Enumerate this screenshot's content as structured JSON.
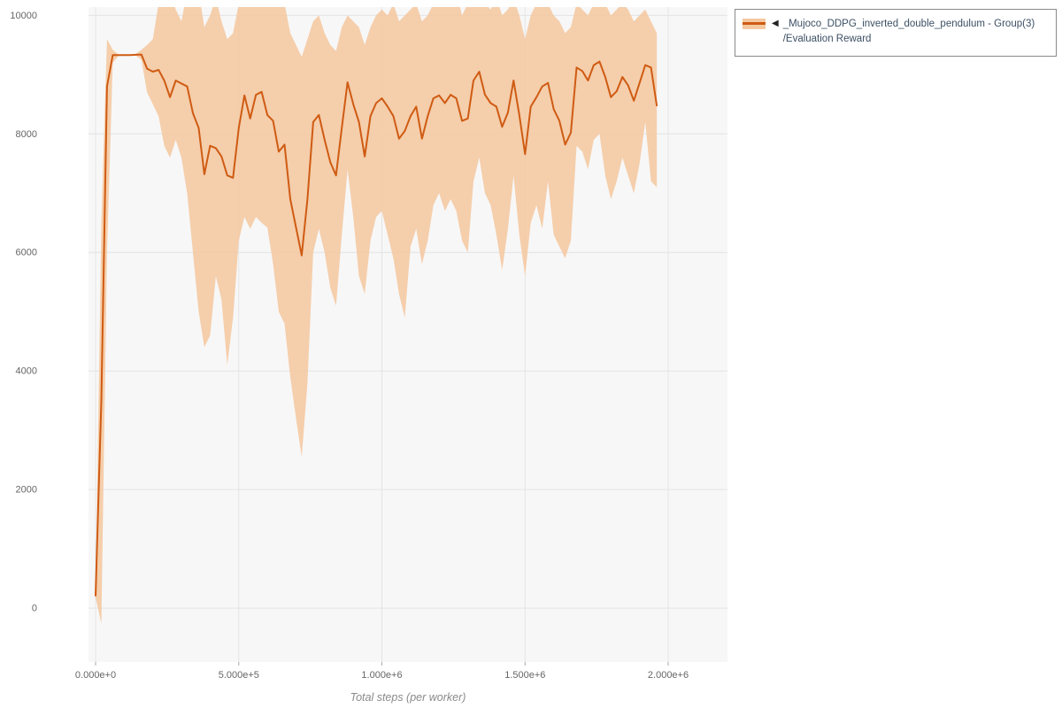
{
  "legend": {
    "marker": "◀",
    "line1": "_Mujoco_DDPG_inverted_double_pendulum - Group(3)",
    "line2": "/Evaluation Reward"
  },
  "colors": {
    "line": "#cf5b13",
    "band": "#f4c9a2",
    "plot_bg": "#f7f7f7",
    "grid": "#e4e4e4",
    "tick_text": "#666666",
    "axis_title": "#8a8a8a",
    "legend_text": "#3c4f63",
    "legend_border": "#8a8a8a"
  },
  "chart_data": {
    "type": "line",
    "title": "",
    "xlabel": "Total steps (per worker)",
    "ylabel": "",
    "grid": true,
    "legend_position": "outside-top-right",
    "xlim": [
      -24700,
      2207000
    ],
    "ylim": [
      -910,
      10140
    ],
    "x_tick_values": [
      0,
      500000,
      1000000,
      1500000,
      2000000
    ],
    "x_tick_labels": [
      "0.000e+0",
      "5.000e+5",
      "1.000e+6",
      "1.500e+6",
      "2.000e+6"
    ],
    "y_tick_values": [
      0,
      2000,
      4000,
      6000,
      8000,
      10000
    ],
    "y_tick_labels": [
      "0",
      "2000",
      "4000",
      "6000",
      "8000",
      "10000"
    ],
    "series": [
      {
        "name": "_Mujoco_DDPG_inverted_double_pendulum - Group(3)/Evaluation Reward",
        "color": "#cf5b13",
        "band_color": "#f4c9a2",
        "band_opacity": 0.9,
        "x": [
          0,
          20000,
          40000,
          60000,
          80000,
          100000,
          120000,
          140000,
          160000,
          180000,
          200000,
          220000,
          240000,
          260000,
          280000,
          300000,
          320000,
          340000,
          360000,
          380000,
          400000,
          420000,
          440000,
          460000,
          480000,
          500000,
          520000,
          540000,
          560000,
          580000,
          600000,
          620000,
          640000,
          660000,
          680000,
          700000,
          720000,
          740000,
          760000,
          780000,
          800000,
          820000,
          840000,
          860000,
          880000,
          900000,
          920000,
          940000,
          960000,
          980000,
          1000000,
          1020000,
          1040000,
          1060000,
          1080000,
          1100000,
          1120000,
          1140000,
          1160000,
          1180000,
          1200000,
          1220000,
          1240000,
          1260000,
          1280000,
          1300000,
          1320000,
          1340000,
          1360000,
          1380000,
          1400000,
          1420000,
          1440000,
          1460000,
          1480000,
          1500000,
          1520000,
          1540000,
          1560000,
          1580000,
          1600000,
          1620000,
          1640000,
          1660000,
          1680000,
          1700000,
          1720000,
          1740000,
          1760000,
          1780000,
          1800000,
          1820000,
          1840000,
          1860000,
          1880000,
          1900000,
          1920000,
          1940000,
          1960000
        ],
        "mean": [
          210,
          3500,
          8800,
          9330,
          9330,
          9330,
          9330,
          9335,
          9340,
          9100,
          9050,
          9080,
          8900,
          8620,
          8900,
          8850,
          8800,
          8350,
          8100,
          7320,
          7800,
          7760,
          7620,
          7300,
          7260,
          8100,
          8650,
          8260,
          8660,
          8710,
          8320,
          8220,
          7700,
          7820,
          6900,
          6420,
          5950,
          6900,
          8200,
          8320,
          7900,
          7520,
          7300,
          8100,
          8870,
          8500,
          8200,
          7620,
          8300,
          8520,
          8600,
          8460,
          8300,
          7920,
          8050,
          8300,
          8460,
          7920,
          8300,
          8600,
          8650,
          8520,
          8660,
          8600,
          8220,
          8260,
          8900,
          9050,
          8660,
          8520,
          8460,
          8120,
          8360,
          8900,
          8320,
          7660,
          8460,
          8620,
          8800,
          8860,
          8420,
          8220,
          7820,
          8020,
          9120,
          9060,
          8900,
          9160,
          9220,
          8960,
          8620,
          8720,
          8960,
          8820,
          8560,
          8860,
          9160,
          9120,
          8480
        ],
        "lower": [
          180,
          -260,
          6000,
          9200,
          9320,
          9320,
          9320,
          9320,
          9250,
          8700,
          8500,
          8300,
          7800,
          7600,
          7900,
          7600,
          7000,
          6000,
          5000,
          4400,
          4600,
          5600,
          5200,
          4100,
          4900,
          6200,
          6600,
          6400,
          6600,
          6500,
          6420,
          5800,
          5000,
          4800,
          3900,
          3200,
          2550,
          3800,
          6000,
          6400,
          6000,
          5400,
          5100,
          6300,
          7400,
          6600,
          5600,
          5300,
          6200,
          6600,
          6700,
          6300,
          5900,
          5300,
          4900,
          6100,
          6400,
          5800,
          6200,
          6800,
          7000,
          6700,
          6900,
          6700,
          6200,
          6000,
          7200,
          7600,
          7000,
          6800,
          6300,
          5700,
          6400,
          7300,
          6300,
          5600,
          6500,
          6800,
          6400,
          7200,
          6300,
          6100,
          5900,
          6200,
          7800,
          7700,
          7400,
          7900,
          8000,
          7300,
          6900,
          7200,
          7600,
          7300,
          7000,
          7500,
          8200,
          7200,
          7100
        ],
        "upper": [
          240,
          6500,
          9600,
          9420,
          9340,
          9340,
          9340,
          9350,
          9420,
          9500,
          9600,
          10200,
          10400,
          10400,
          10100,
          9900,
          10400,
          10300,
          10400,
          9800,
          10000,
          10300,
          9900,
          9600,
          9700,
          10200,
          10400,
          10300,
          10400,
          10300,
          10200,
          10400,
          10300,
          10200,
          9700,
          9500,
          9300,
          9600,
          9900,
          10000,
          9700,
          9500,
          9400,
          9800,
          10000,
          9900,
          9800,
          9500,
          9800,
          10000,
          10100,
          10000,
          10200,
          9900,
          10000,
          10100,
          10200,
          9900,
          10000,
          10200,
          10300,
          10200,
          10300,
          10400,
          10000,
          10200,
          10400,
          10300,
          10200,
          10100,
          10300,
          10000,
          10100,
          10300,
          10000,
          9600,
          10000,
          10200,
          10300,
          10200,
          10000,
          9900,
          9700,
          9800,
          10200,
          10100,
          10000,
          10200,
          10300,
          10200,
          10000,
          10100,
          10200,
          10100,
          9900,
          10000,
          10100,
          9900,
          9700
        ]
      }
    ]
  }
}
